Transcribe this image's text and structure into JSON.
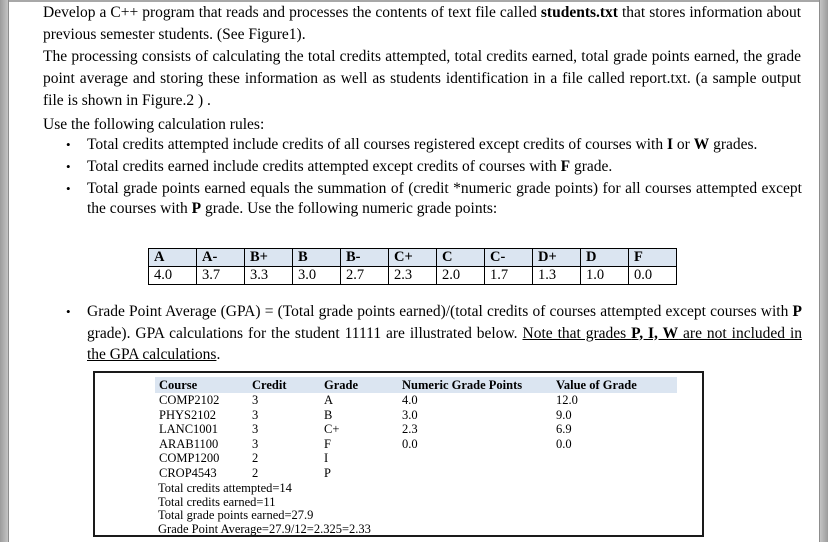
{
  "doc": {
    "bullet_icon": "•",
    "intro_p1": [
      {
        "t": "Develop a C++ program that reads and processes the contents of text file called "
      },
      {
        "t": "students.txt",
        "b": true
      },
      {
        "t": " that stores information about previous semester students. (See Figure1)."
      }
    ],
    "intro_p2": [
      {
        "t": "The processing consists of calculating the total credits attempted, total credits earned, total grade points earned, the grade point average and storing these information as well as students identification in a file called report.txt. (a sample output file is shown in Figure.2 ) ."
      }
    ],
    "rules_intro": "Use the following calculation rules:",
    "rules": [
      [
        {
          "t": "Total credits attempted include credits of all courses registered except credits of courses with "
        },
        {
          "t": "I",
          "b": true
        },
        {
          "t": " or "
        },
        {
          "t": "W",
          "b": true
        },
        {
          "t": " grades."
        }
      ],
      [
        {
          "t": "Total credits earned include credits attempted except credits of courses with "
        },
        {
          "t": "F",
          "b": true
        },
        {
          "t": " grade."
        }
      ],
      [
        {
          "t": "Total grade points earned equals the summation of (credit *numeric grade points) for all courses attempted except the courses with "
        },
        {
          "t": "P",
          "b": true
        },
        {
          "t": " grade. Use the following numeric grade points:"
        }
      ]
    ],
    "gpa_rule": [
      {
        "t": "Grade Point Average (GPA) = (Total grade points earned)/(total credits of courses attempted except courses with "
      },
      {
        "t": "P",
        "b": true
      },
      {
        "t": " grade). GPA calculations for the student 11111 are illustrated below. "
      },
      {
        "t": "Note that grades ",
        "u": true
      },
      {
        "t": "P, I, W",
        "b": true,
        "u": true
      },
      {
        "t": " are not included in the GPA calculations",
        "u": true
      },
      {
        "t": "."
      }
    ],
    "grade_scale": {
      "grades": [
        "A",
        "A-",
        "B+",
        "B",
        "B-",
        "C+",
        "C",
        "C-",
        "D+",
        "D",
        "F"
      ],
      "points": [
        "4.0",
        "3.7",
        "3.3",
        "3.0",
        "2.7",
        "2.3",
        "2.0",
        "1.7",
        "1.3",
        "1.0",
        "0.0"
      ]
    },
    "figure": {
      "headers": [
        "Course",
        "Credit",
        "Grade",
        "Numeric Grade Points",
        "Value of Grade"
      ],
      "rows": [
        [
          "COMP2102",
          "3",
          "A",
          "4.0",
          "12.0"
        ],
        [
          "PHYS2102",
          "3",
          "B",
          "3.0",
          "9.0"
        ],
        [
          "LANC1001",
          "3",
          "C+",
          "2.3",
          "6.9"
        ],
        [
          "ARAB1100",
          "3",
          "F",
          "0.0",
          "0.0"
        ],
        [
          "COMP1200",
          "2",
          "I",
          "",
          ""
        ],
        [
          "CROP4543",
          "2",
          "P",
          "",
          ""
        ]
      ],
      "summary": [
        "Total credits attempted=14",
        "Total credits earned=11",
        "Total grade points earned=27.9",
        "Grade Point Average=27.9/12=2.325=2.33"
      ]
    },
    "colors": {
      "table_header_fill": "#dbe5f1",
      "page_edge_gray": "#b0b0b0",
      "text": "#000000",
      "border": "#000000"
    }
  }
}
